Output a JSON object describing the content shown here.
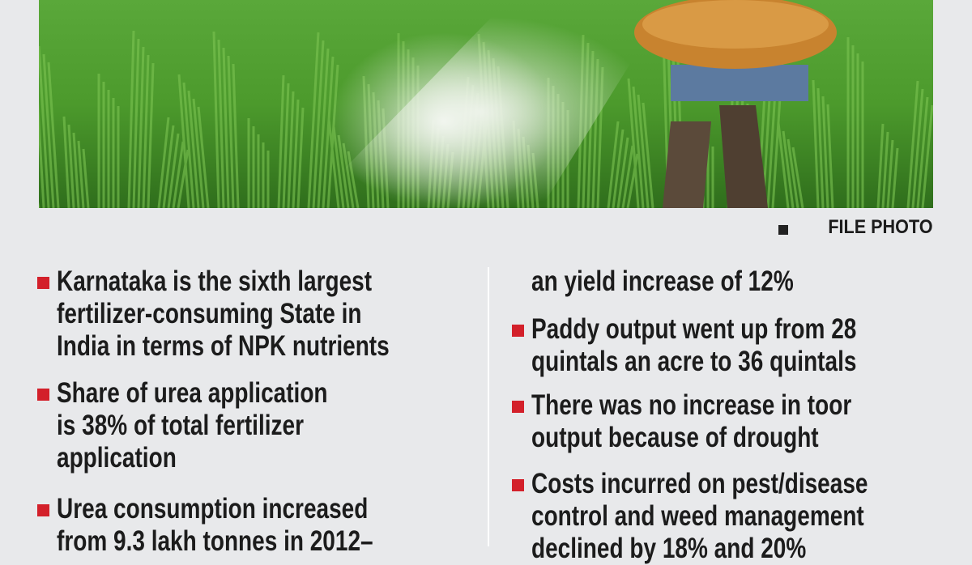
{
  "photo": {
    "credit": "FILE PHOTO"
  },
  "left_column": [
    {
      "lines": [
        "Karnataka is the sixth largest",
        "fertilizer-consuming State in",
        "India in terms of NPK nutrients"
      ]
    },
    {
      "lines": [
        "Share of urea application",
        "is 38% of total fertilizer",
        "application"
      ]
    },
    {
      "lines": [
        "Urea consumption increased",
        "from 9.3 lakh tonnes in 2012–"
      ]
    }
  ],
  "right_column_continuation": "an yield increase of 12%",
  "right_column": [
    {
      "lines": [
        "Paddy output went up from 28",
        "quintals an acre to 36 quintals"
      ]
    },
    {
      "lines": [
        "There was no increase in toor",
        "output because of drought"
      ]
    },
    {
      "lines": [
        "Costs incurred on pest/disease",
        "control and weed management",
        "declined by 18% and 20%"
      ]
    }
  ]
}
